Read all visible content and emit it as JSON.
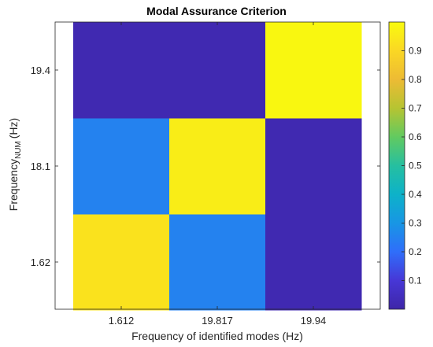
{
  "chart_data": {
    "type": "heatmap",
    "title": "Modal Assurance Criterion",
    "xlabel": "Frequency of identified modes (Hz)",
    "ylabel": {
      "main": "Frequency",
      "subscript": "NUM",
      "unit": "(Hz)"
    },
    "x_categories": [
      "1.612",
      "19.817",
      "19.94"
    ],
    "y_categories": [
      "1.62",
      "18.1",
      "19.4"
    ],
    "values": [
      [
        0.93,
        0.25,
        0.02
      ],
      [
        0.25,
        0.96,
        0.02
      ],
      [
        0.02,
        0.02,
        0.99
      ]
    ],
    "colorbar": {
      "colormap": "parula",
      "range": [
        0,
        1
      ],
      "ticks": [
        0.1,
        0.2,
        0.3,
        0.4,
        0.5,
        0.6,
        0.7,
        0.8,
        0.9
      ]
    },
    "grid": false
  }
}
